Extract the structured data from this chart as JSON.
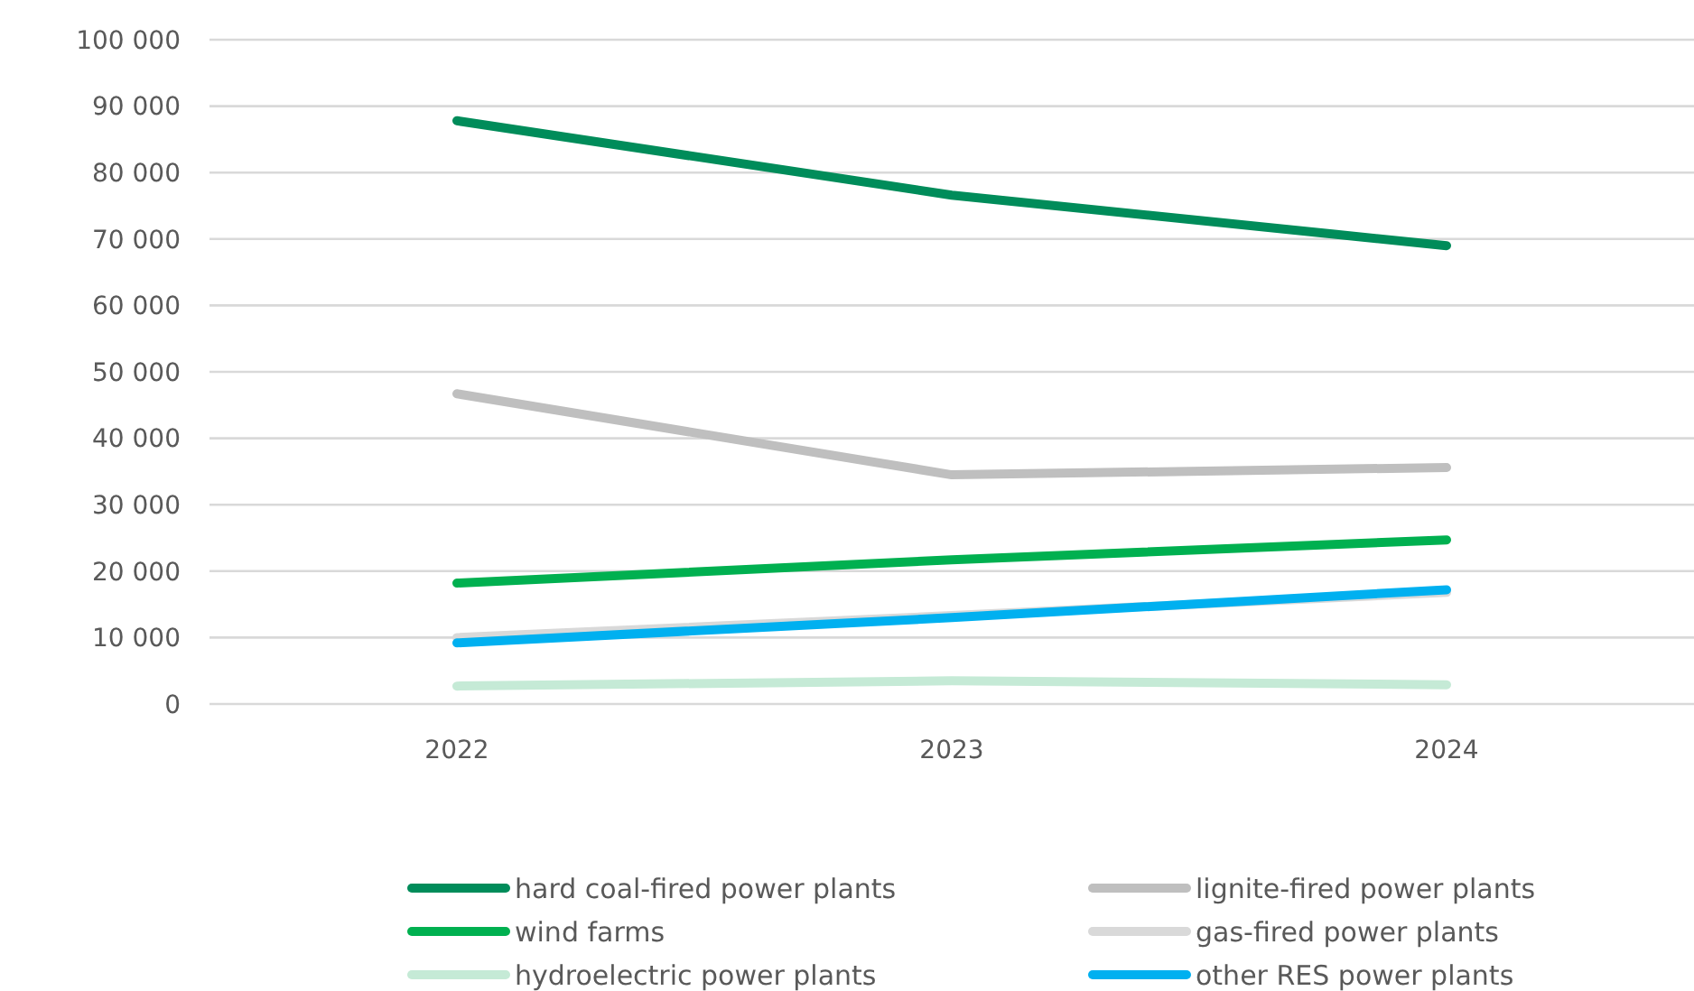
{
  "chart_data": {
    "type": "line",
    "categories": [
      "2022",
      "2023",
      "2024"
    ],
    "series": [
      {
        "name": "hard coal-fired power plants",
        "color": "#008c5a",
        "values": [
          87800,
          76600,
          69000
        ]
      },
      {
        "name": "lignite-fired power plants",
        "color": "#bfbfbf",
        "values": [
          46700,
          34500,
          35600
        ]
      },
      {
        "name": "wind farms",
        "color": "#00b050",
        "values": [
          18200,
          21700,
          24700
        ]
      },
      {
        "name": "gas-fired power plants",
        "color": "#d9d9d9",
        "values": [
          10000,
          13300,
          16800
        ]
      },
      {
        "name": "hydroelectric power plants",
        "color": "#c5ead6",
        "values": [
          2700,
          3500,
          2900
        ]
      },
      {
        "name": "other RES power plants",
        "color": "#00b0f0",
        "values": [
          9200,
          13000,
          17200
        ]
      }
    ],
    "ylim": [
      0,
      100000
    ],
    "yticks": [
      {
        "value": 0,
        "label": "0"
      },
      {
        "value": 10000,
        "label": "10 000"
      },
      {
        "value": 20000,
        "label": "20 000"
      },
      {
        "value": 30000,
        "label": "30 000"
      },
      {
        "value": 40000,
        "label": "40 000"
      },
      {
        "value": 50000,
        "label": "50 000"
      },
      {
        "value": 60000,
        "label": "60 000"
      },
      {
        "value": 70000,
        "label": "70 000"
      },
      {
        "value": 80000,
        "label": "80 000"
      },
      {
        "value": 90000,
        "label": "90 000"
      },
      {
        "value": 100000,
        "label": "100 000"
      }
    ],
    "grid": "y",
    "legend": "bottom",
    "marker": "none",
    "line_style": "solid"
  }
}
